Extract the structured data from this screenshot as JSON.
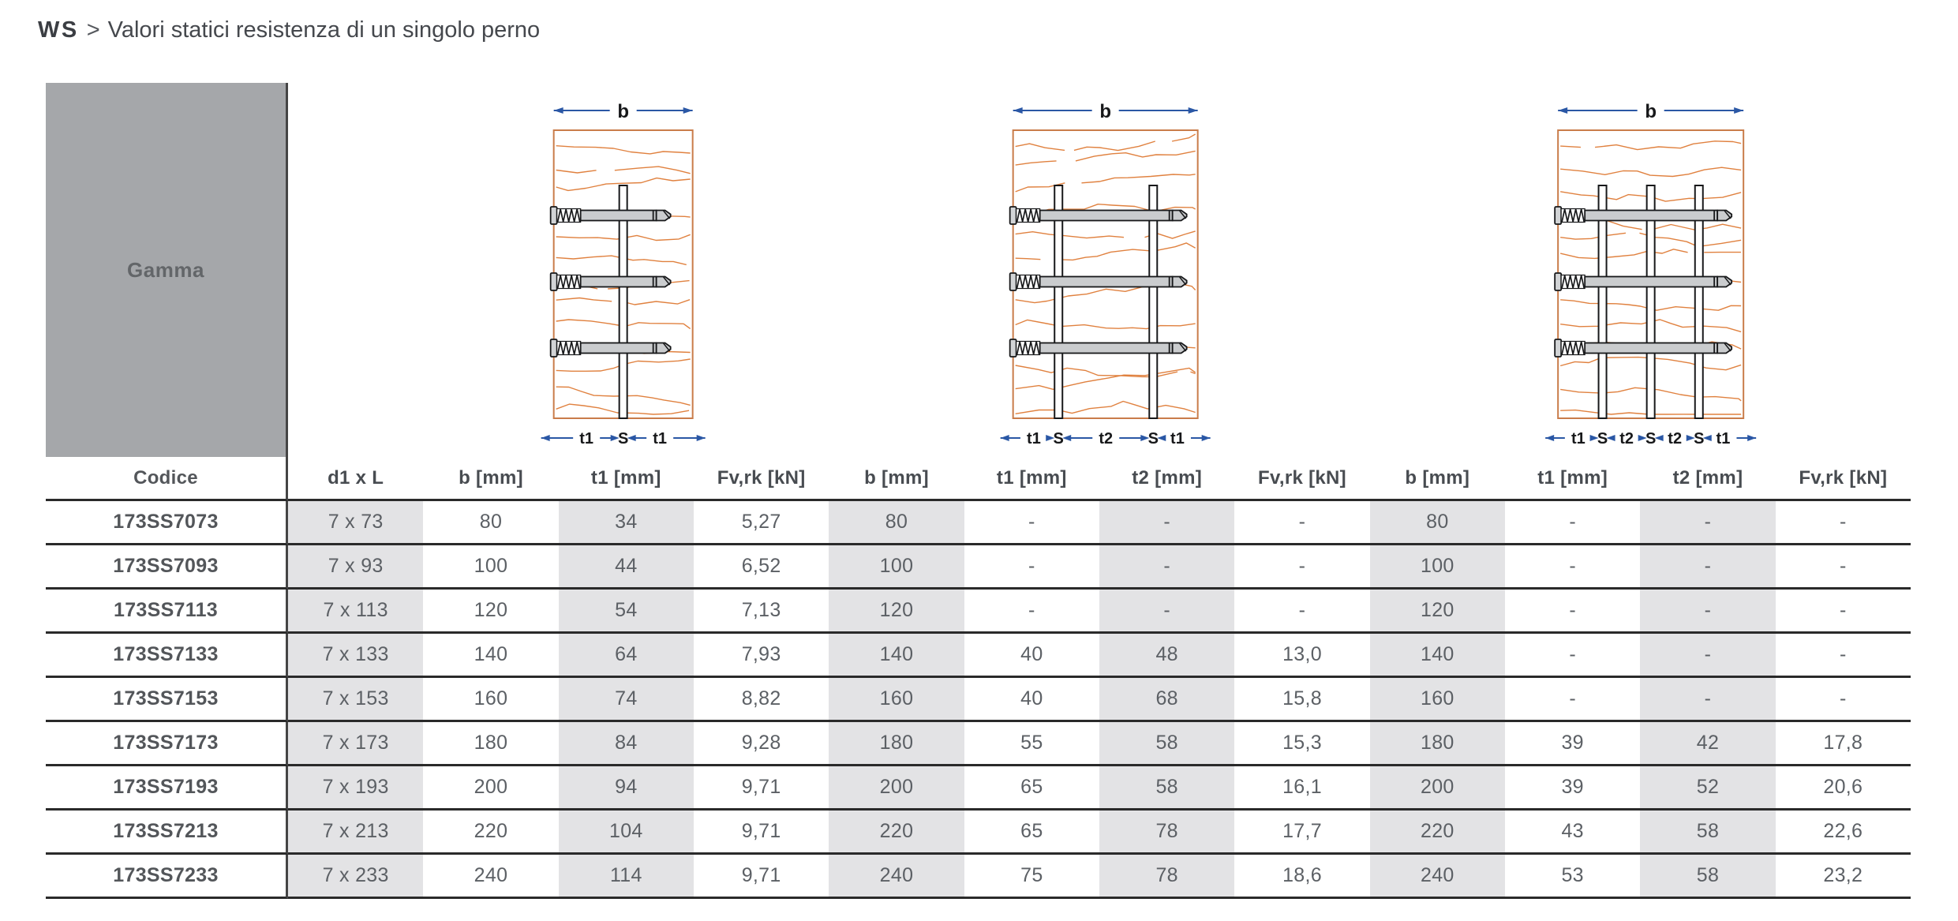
{
  "title": {
    "brand": "WS",
    "separator": ">",
    "subtitle": "Valori statici resistenza di un singolo perno"
  },
  "gamma_label": "Gamma",
  "diagrams": [
    {
      "name": "wood-joint-one-steel-plate",
      "dim_label": "b",
      "plates": 1,
      "bottom_labels": [
        "t1",
        "S",
        "t1"
      ]
    },
    {
      "name": "wood-joint-two-steel-plates",
      "dim_label": "b",
      "plates": 2,
      "bottom_labels": [
        "t1",
        "S",
        "t2",
        "S",
        "t1"
      ]
    },
    {
      "name": "wood-joint-three-steel-plates",
      "dim_label": "b",
      "plates": 3,
      "bottom_labels": [
        "t1",
        "S",
        "t2",
        "S",
        "t2",
        "S",
        "t1"
      ]
    }
  ],
  "table": {
    "columns": [
      "Codice",
      "d1 x L",
      "b [mm]",
      "t1 [mm]",
      "Fv,rk [kN]",
      "b [mm]",
      "t1 [mm]",
      "t2 [mm]",
      "Fv,rk [kN]",
      "b [mm]",
      "t1 [mm]",
      "t2 [mm]",
      "Fv,rk [kN]"
    ],
    "striped_columns": [
      1,
      3,
      5,
      7,
      9,
      11
    ],
    "rows": [
      [
        "173SS7073",
        "7 x 73",
        "80",
        "34",
        "5,27",
        "80",
        "-",
        "-",
        "-",
        "80",
        "-",
        "-",
        "-"
      ],
      [
        "173SS7093",
        "7 x 93",
        "100",
        "44",
        "6,52",
        "100",
        "-",
        "-",
        "-",
        "100",
        "-",
        "-",
        "-"
      ],
      [
        "173SS7113",
        "7 x 113",
        "120",
        "54",
        "7,13",
        "120",
        "-",
        "-",
        "-",
        "120",
        "-",
        "-",
        "-"
      ],
      [
        "173SS7133",
        "7 x 133",
        "140",
        "64",
        "7,93",
        "140",
        "40",
        "48",
        "13,0",
        "140",
        "-",
        "-",
        "-"
      ],
      [
        "173SS7153",
        "7 x 153",
        "160",
        "74",
        "8,82",
        "160",
        "40",
        "68",
        "15,8",
        "160",
        "-",
        "-",
        "-"
      ],
      [
        "173SS7173",
        "7 x 173",
        "180",
        "84",
        "9,28",
        "180",
        "55",
        "58",
        "15,3",
        "180",
        "39",
        "42",
        "17,8"
      ],
      [
        "173SS7193",
        "7 x 193",
        "200",
        "94",
        "9,71",
        "200",
        "65",
        "58",
        "16,1",
        "200",
        "39",
        "52",
        "20,6"
      ],
      [
        "173SS7213",
        "7 x 213",
        "220",
        "104",
        "9,71",
        "220",
        "65",
        "78",
        "17,7",
        "220",
        "43",
        "58",
        "22,6"
      ],
      [
        "173SS7233",
        "7 x 233",
        "240",
        "114",
        "9,71",
        "240",
        "75",
        "78",
        "18,6",
        "240",
        "53",
        "58",
        "23,2"
      ]
    ]
  },
  "colors": {
    "gamma_box": "#a5a7aa",
    "stripe": "#e3e3e5",
    "row_line": "#2a2a2a",
    "divider": "#454545",
    "header_text": "#484c51",
    "cell_text": "#5c6065",
    "title_text": "#45484d",
    "wood_outline": "#c97c4a",
    "wood_grain": "#e0813f",
    "dimension_blue": "#2a57a5",
    "steel_fill": "#caccce",
    "ink": "#17181a"
  }
}
